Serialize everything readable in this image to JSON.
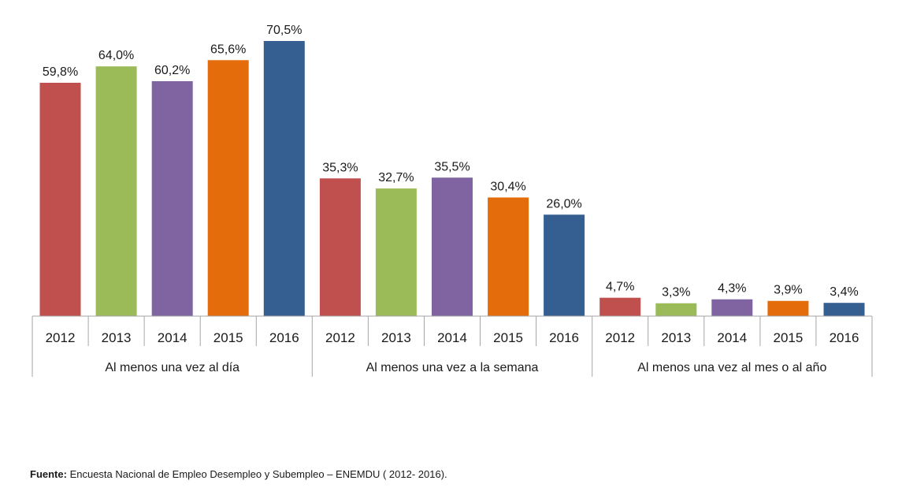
{
  "chart_data": {
    "type": "bar",
    "groups": [
      "Al menos una vez al día",
      "Al menos una vez a la semana",
      "Al menos una vez al mes o al año"
    ],
    "categories": [
      "2012",
      "2013",
      "2014",
      "2015",
      "2016"
    ],
    "series": [
      {
        "group": "Al menos una vez al día",
        "values": [
          59.8,
          64.0,
          60.2,
          65.6,
          70.5
        ],
        "labels": [
          "59,8%",
          "64,0%",
          "60,2%",
          "65,6%",
          "70,5%"
        ]
      },
      {
        "group": "Al menos una vez a la semana",
        "values": [
          35.3,
          32.7,
          35.5,
          30.4,
          26.0
        ],
        "labels": [
          "35,3%",
          "32,7%",
          "35,5%",
          "30,4%",
          "26,0%"
        ]
      },
      {
        "group": "Al menos una vez al mes o al año",
        "values": [
          4.7,
          3.3,
          4.3,
          3.9,
          3.4
        ],
        "labels": [
          "4,7%",
          "3,3%",
          "4,3%",
          "3,9%",
          "3,4%"
        ]
      }
    ],
    "colors": [
      "#c0504d",
      "#9bbb59",
      "#8064a2",
      "#e46c0a",
      "#355f91"
    ],
    "ylim": [
      0,
      70.5
    ],
    "grid": false
  },
  "source": {
    "label": "Fuente:",
    "text": " Encuesta Nacional de Empleo Desempleo y Subempleo – ENEMDU ( 2012- 2016)."
  }
}
